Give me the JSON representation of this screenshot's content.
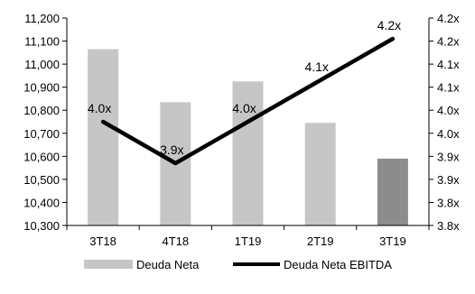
{
  "chart_data": {
    "type": "bar",
    "categories": [
      "3T18",
      "4T18",
      "1T19",
      "2T19",
      "3T19"
    ],
    "series": [
      {
        "name": "Deuda Neta",
        "kind": "bar",
        "axis": "left",
        "values": [
          11065,
          10835,
          10925,
          10745,
          10590
        ],
        "color": "#c6c6c6",
        "highlight_color": "#8c8c8c",
        "highlight_index": 4
      },
      {
        "name": "Deuda Neta EBITDA",
        "kind": "line",
        "axis": "right",
        "values": [
          4.0,
          3.9,
          4.0,
          4.1,
          4.2
        ],
        "labels": [
          "4.0x",
          "3.9x",
          "4.0x",
          "4.1x",
          "4.2x"
        ],
        "color": "#000000"
      }
    ],
    "y_left": {
      "min": 10300,
      "max": 11200,
      "ticks": [
        "10,300",
        "10,400",
        "10,500",
        "10,600",
        "10,700",
        "10,800",
        "10,900",
        "11,000",
        "11,100",
        "11,200"
      ]
    },
    "y_right": {
      "min": 3.75,
      "max": 4.25,
      "ticks": [
        "3.8x",
        "3.8x",
        "3.9x",
        "3.9x",
        "4.0x",
        "4.0x",
        "4.1x",
        "4.1x",
        "4.2x",
        "4.2x"
      ]
    },
    "grid": false,
    "legend": "bottom"
  }
}
